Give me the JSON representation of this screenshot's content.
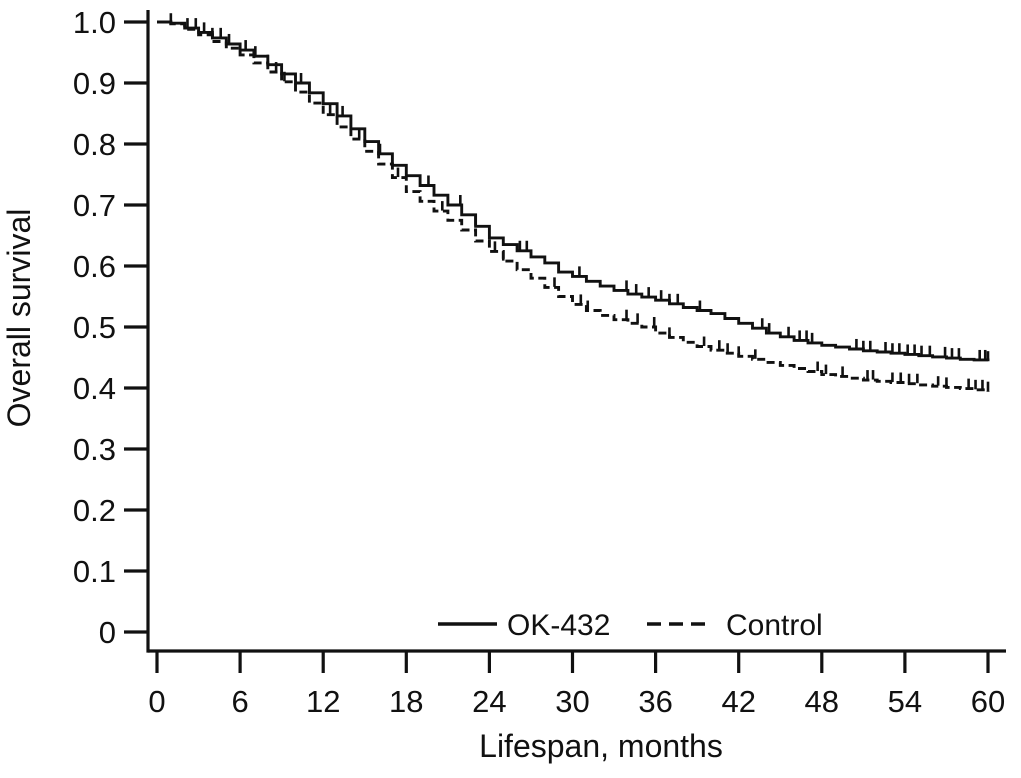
{
  "figure": {
    "background_color": "#ffffff",
    "ink_color": "#111111"
  },
  "chart_data": {
    "type": "line",
    "subtype": "kaplan-meier-step-survival",
    "title": "",
    "xlabel": "Lifespan, months",
    "ylabel": "Overall survival",
    "xlim": [
      0,
      60
    ],
    "ylim": [
      0,
      1.0
    ],
    "grid": false,
    "legend_position": "inside-bottom-center",
    "x_ticks": [
      0,
      6,
      12,
      18,
      24,
      30,
      36,
      42,
      48,
      54,
      60
    ],
    "x_tick_labels": [
      "0",
      "6",
      "12",
      "18",
      "24",
      "30",
      "36",
      "42",
      "48",
      "54",
      "60"
    ],
    "y_ticks": [
      1.0,
      0.9,
      0.8,
      0.7,
      0.6,
      0.5,
      0.4,
      0.3,
      0.2,
      0.1,
      0
    ],
    "y_tick_labels": [
      "1.0",
      "0.9",
      "0.8",
      "0.7",
      "0.6",
      "0.5",
      "0.4",
      "0.3",
      "0.2",
      "0.1",
      "0"
    ],
    "series": [
      {
        "name": "OK-432",
        "line_style": "solid",
        "color": "#111111",
        "x": [
          0,
          1,
          2,
          3,
          4,
          5,
          6,
          7,
          8,
          9,
          10,
          11,
          12,
          13,
          14,
          15,
          16,
          17,
          18,
          19,
          20,
          21,
          22,
          23,
          24,
          25,
          26,
          27,
          28,
          29,
          30,
          31,
          32,
          33,
          34,
          35,
          36,
          37,
          38,
          39,
          40,
          41,
          42,
          43,
          44,
          45,
          46,
          47,
          48,
          49,
          50,
          51,
          52,
          53,
          54,
          55,
          56,
          57,
          58,
          59,
          60
        ],
        "values": [
          1.0,
          0.998,
          0.99,
          0.983,
          0.974,
          0.964,
          0.954,
          0.944,
          0.93,
          0.915,
          0.9,
          0.884,
          0.866,
          0.846,
          0.825,
          0.804,
          0.784,
          0.765,
          0.748,
          0.732,
          0.716,
          0.7,
          0.684,
          0.665,
          0.646,
          0.635,
          0.625,
          0.615,
          0.605,
          0.59,
          0.583,
          0.575,
          0.567,
          0.56,
          0.554,
          0.549,
          0.544,
          0.538,
          0.532,
          0.527,
          0.522,
          0.514,
          0.506,
          0.498,
          0.49,
          0.484,
          0.478,
          0.474,
          0.47,
          0.467,
          0.464,
          0.461,
          0.459,
          0.457,
          0.455,
          0.453,
          0.451,
          0.449,
          0.447,
          0.446,
          0.444
        ],
        "censor_times": [
          1.0,
          2.2,
          2.8,
          3.4,
          4.0,
          4.6,
          5.2,
          6.4,
          7.1,
          8.0,
          10.4,
          11.0,
          13.4,
          16.1,
          19.6,
          21.9,
          23.0,
          26.2,
          26.7,
          30.5,
          33.9,
          34.6,
          35.5,
          36.4,
          37.0,
          37.6,
          39.2,
          43.7,
          44.2,
          45.6,
          46.4,
          46.9,
          47.3,
          50.5,
          51.0,
          51.5,
          52.6,
          53.1,
          53.6,
          54.2,
          54.7,
          55.2,
          55.8,
          56.9,
          57.4,
          57.9,
          59.4,
          59.8,
          60.0
        ]
      },
      {
        "name": "Control",
        "line_style": "dashed",
        "color": "#111111",
        "x": [
          0,
          1,
          2,
          3,
          4,
          5,
          6,
          7,
          8,
          9,
          10,
          11,
          12,
          13,
          14,
          15,
          16,
          17,
          18,
          19,
          20,
          21,
          22,
          23,
          24,
          25,
          26,
          27,
          28,
          29,
          30,
          31,
          32,
          33,
          34,
          35,
          36,
          37,
          38,
          39,
          40,
          41,
          42,
          43,
          44,
          45,
          46,
          47,
          48,
          49,
          50,
          51,
          52,
          53,
          54,
          55,
          56,
          57,
          58,
          59,
          60
        ],
        "values": [
          1.0,
          0.997,
          0.988,
          0.979,
          0.968,
          0.957,
          0.946,
          0.933,
          0.918,
          0.902,
          0.885,
          0.867,
          0.848,
          0.828,
          0.808,
          0.788,
          0.767,
          0.745,
          0.722,
          0.706,
          0.69,
          0.675,
          0.659,
          0.641,
          0.624,
          0.608,
          0.594,
          0.58,
          0.565,
          0.55,
          0.537,
          0.527,
          0.519,
          0.512,
          0.506,
          0.5,
          0.49,
          0.483,
          0.475,
          0.468,
          0.462,
          0.457,
          0.452,
          0.447,
          0.442,
          0.437,
          0.432,
          0.427,
          0.422,
          0.419,
          0.416,
          0.413,
          0.411,
          0.409,
          0.407,
          0.405,
          0.403,
          0.401,
          0.399,
          0.397,
          0.394
        ],
        "censor_times": [
          8.6,
          9.2,
          12.5,
          14.6,
          17.4,
          20.6,
          24.4,
          25.0,
          28.7,
          30.6,
          31.1,
          33.9,
          34.7,
          35.9,
          37.0,
          39.5,
          40.6,
          41.2,
          42.0,
          43.2,
          47.7,
          48.3,
          49.5,
          51.3,
          51.7,
          53.1,
          53.7,
          54.3,
          54.9,
          56.4,
          57.0,
          58.6,
          59.1,
          59.6,
          60.0
        ]
      }
    ]
  },
  "legend": {
    "items": [
      {
        "label": "OK-432",
        "style": "solid-line"
      },
      {
        "label": "Control",
        "style": "dashed-line"
      }
    ]
  }
}
